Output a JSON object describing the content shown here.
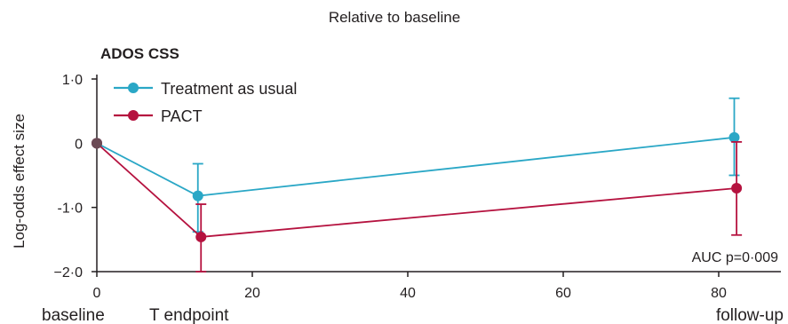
{
  "chart_data": {
    "type": "line",
    "title": "Relative to baseline",
    "subtitle": "ADOS CSS",
    "xlabel": "",
    "ylabel": "Log-odds effect size",
    "xlim": [
      0,
      88
    ],
    "ylim": [
      -2.0,
      1.0
    ],
    "x_ticks": [
      0,
      20,
      40,
      60,
      80
    ],
    "y_ticks": [
      1.0,
      0,
      -1.0,
      -2.0
    ],
    "y_tick_labels": [
      "1·0",
      "0",
      "-1·0",
      "−2·0"
    ],
    "x_tick_labels": [
      "0",
      "20",
      "40",
      "60",
      "80"
    ],
    "x_category_labels": [
      {
        "x": 0,
        "label": "baseline"
      },
      {
        "x": 13,
        "label": "T endpoint"
      },
      {
        "x": 82,
        "label": "follow-up"
      }
    ],
    "series": [
      {
        "name": "Treatment as usual",
        "color": "#2aa7c6",
        "points": [
          {
            "x": 0,
            "y": 0,
            "lo": null,
            "hi": null
          },
          {
            "x": 13,
            "y": -0.82,
            "lo": -1.38,
            "hi": -0.32
          },
          {
            "x": 82,
            "y": 0.09,
            "lo": -0.5,
            "hi": 0.7
          }
        ]
      },
      {
        "name": "PACT",
        "color": "#b5123f",
        "points": [
          {
            "x": 0,
            "y": 0,
            "lo": null,
            "hi": null
          },
          {
            "x": 13.4,
            "y": -1.46,
            "lo": -2.0,
            "hi": -0.95
          },
          {
            "x": 82.3,
            "y": -0.7,
            "lo": -1.43,
            "hi": 0.02
          }
        ]
      }
    ],
    "annotation": "AUC p=0·009",
    "legend_position": "top-left",
    "grid": false
  }
}
